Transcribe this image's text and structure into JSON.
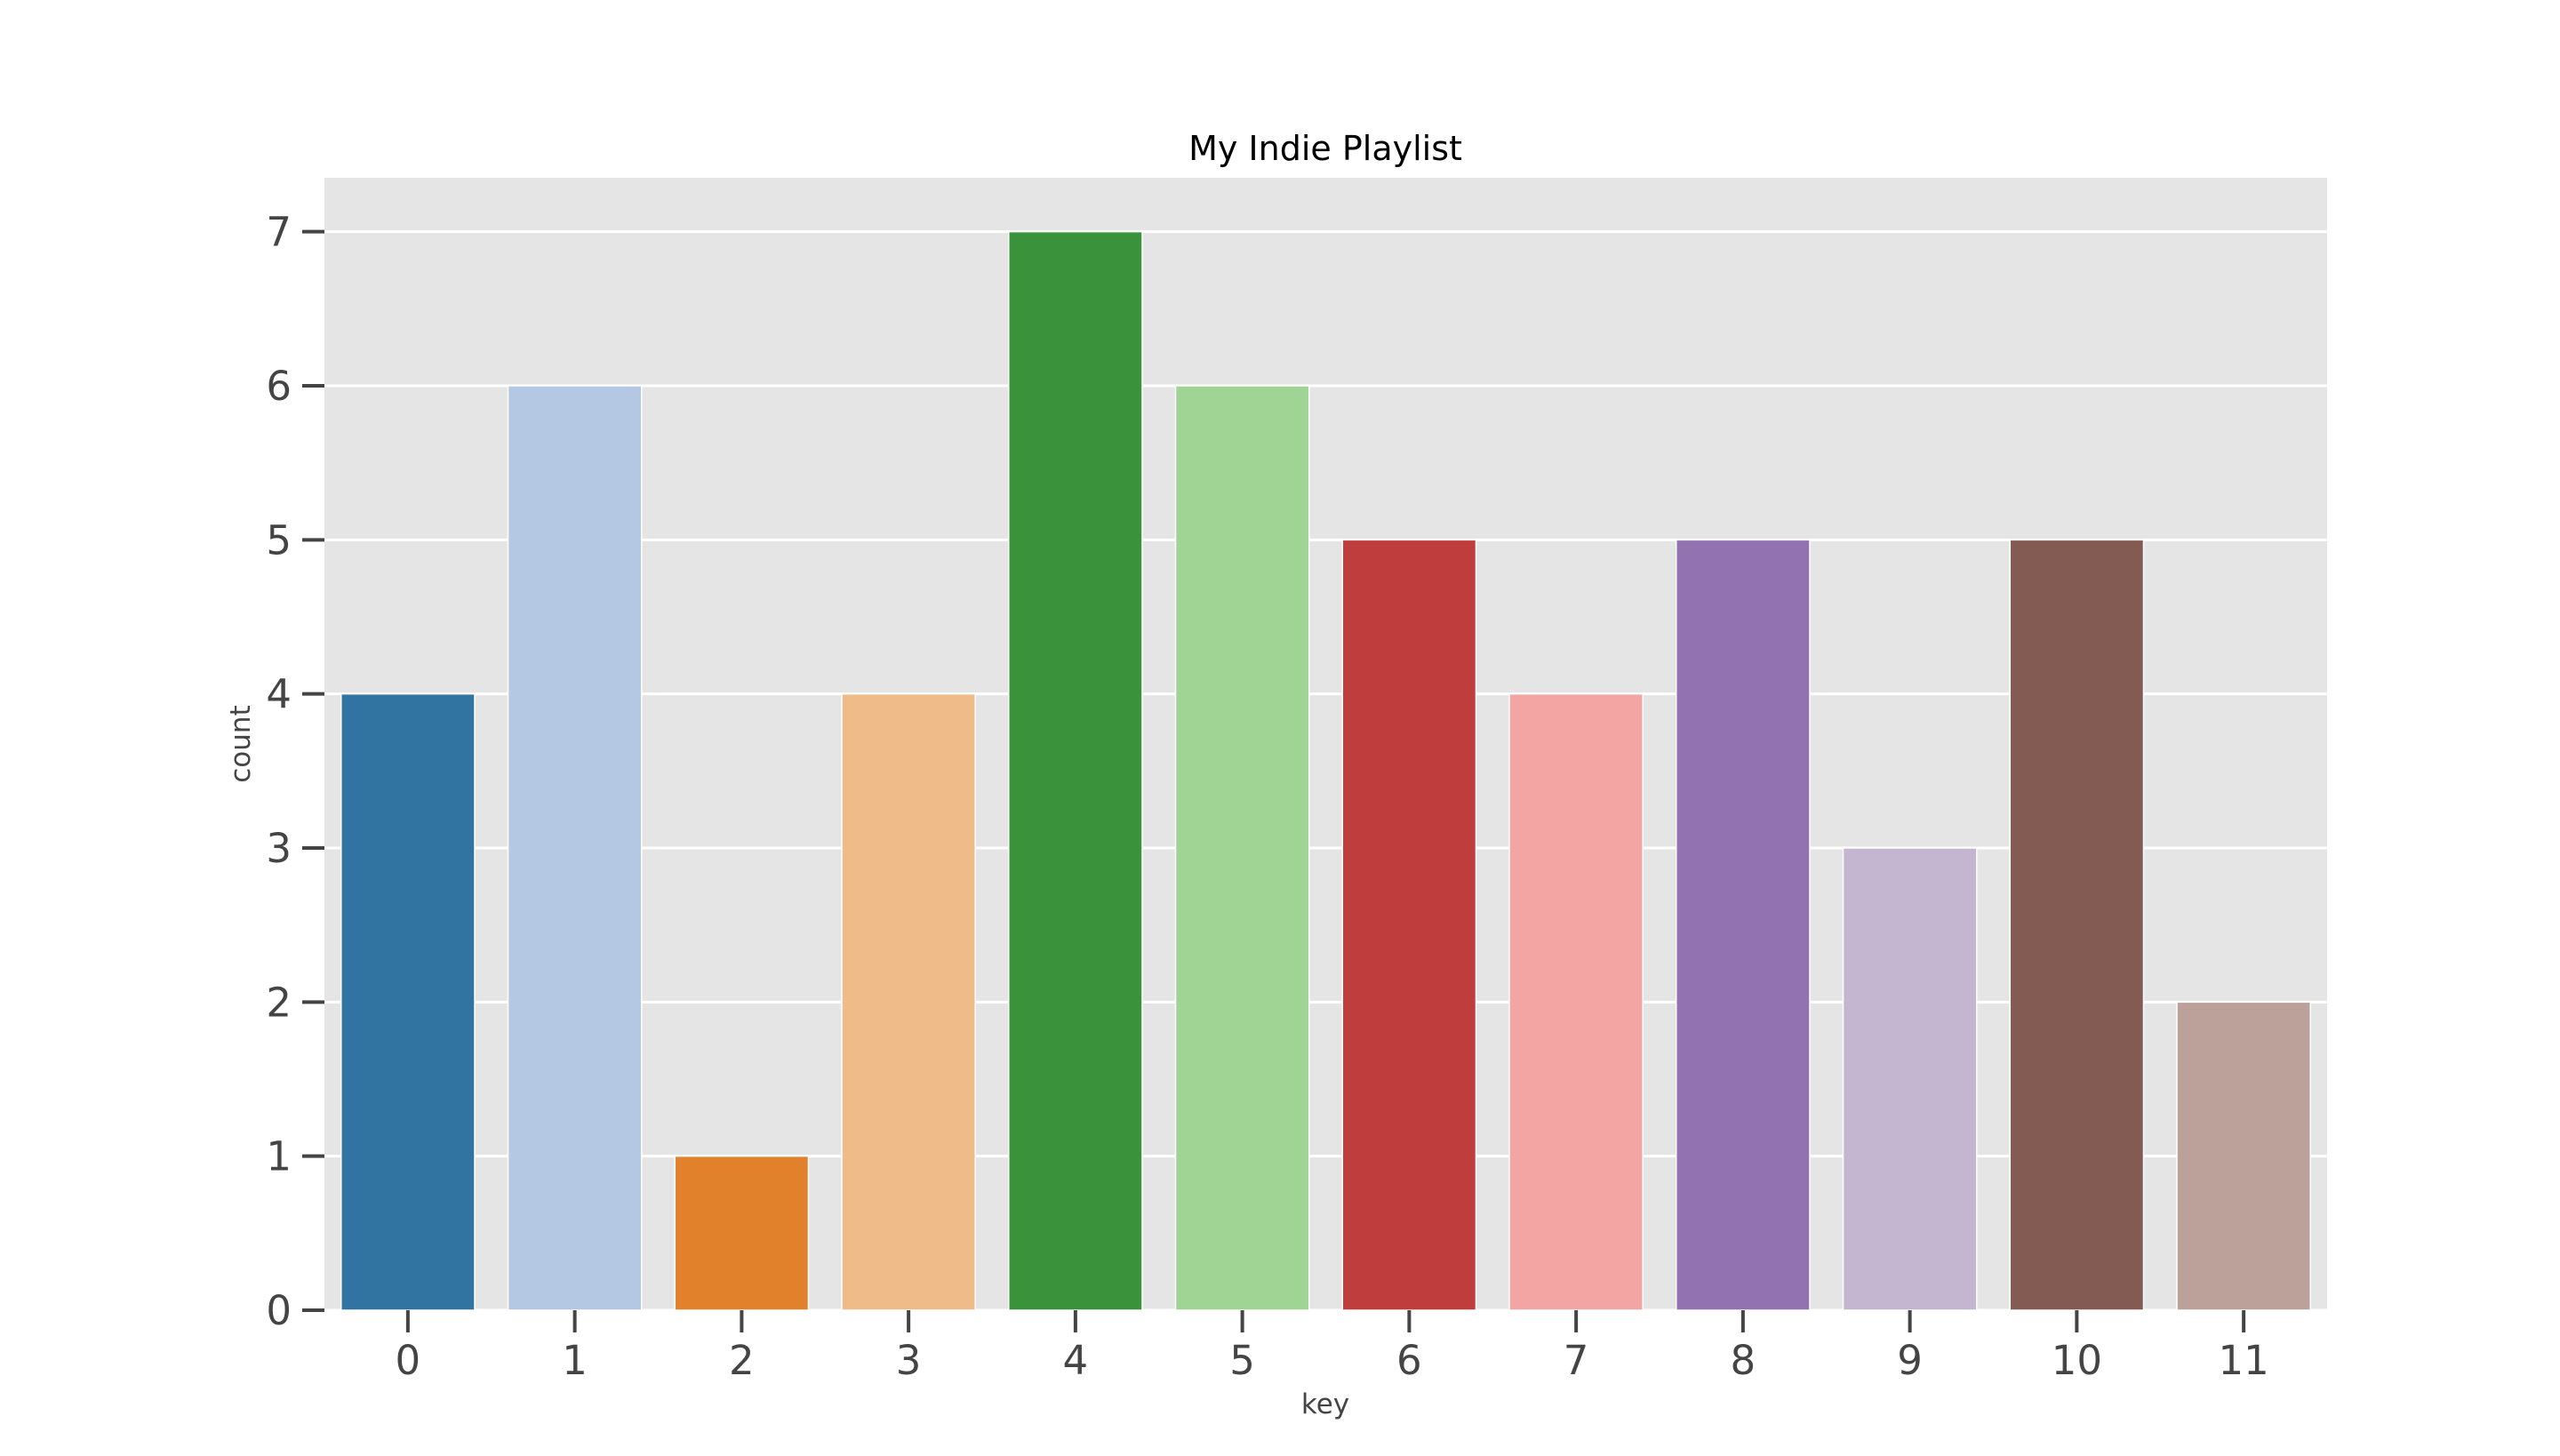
{
  "chart_data": {
    "type": "bar",
    "title": "My Indie Playlist",
    "xlabel": "key",
    "ylabel": "count",
    "categories": [
      "0",
      "1",
      "2",
      "3",
      "4",
      "5",
      "6",
      "7",
      "8",
      "9",
      "10",
      "11"
    ],
    "values": [
      4,
      6,
      1,
      4,
      7,
      6,
      5,
      4,
      5,
      3,
      5,
      2
    ],
    "ylim": [
      0,
      7.35
    ],
    "yticks": [
      0,
      1,
      2,
      3,
      4,
      5,
      6,
      7
    ],
    "grid": true,
    "legend": "none",
    "colors": [
      "#3274a1",
      "#b4c8e3",
      "#e1812c",
      "#efbb89",
      "#3a923a",
      "#a0d495",
      "#c03d3e",
      "#f3a5a4",
      "#9372b2",
      "#c4b5d0",
      "#845b53",
      "#bca19b"
    ],
    "background_color": "#e5e5e5",
    "grid_color": "#ffffff"
  }
}
